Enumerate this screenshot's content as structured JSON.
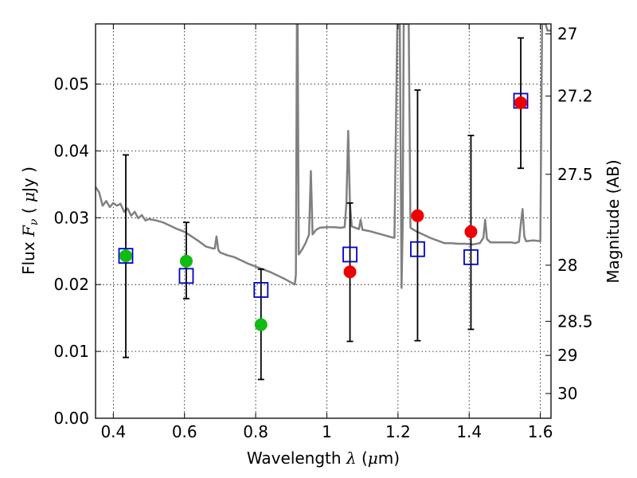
{
  "chart_data": {
    "type": "scatter",
    "title": "",
    "xlabel_prefix": "Wavelength  ",
    "xlabel_symbol": "λ",
    "xlabel_unit_open": " (",
    "xlabel_unit_mu": "μ",
    "xlabel_unit_rest": "m)",
    "ylabel_prefix": "Flux  ",
    "ylabel_symbol_main": "F",
    "ylabel_symbol_sub": "ν",
    "ylabel_unit_open": "  ( ",
    "ylabel_unit_mu": "μ",
    "ylabel_unit_rest": "Jy )",
    "y2label": "Magnitude (AB)",
    "xlim": [
      0.35,
      1.63
    ],
    "ylim": [
      0.0,
      0.059
    ],
    "grid": true,
    "x_ticks": [
      0.4,
      0.6,
      0.8,
      1.0,
      1.2,
      1.4,
      1.6
    ],
    "x_tick_labels": [
      "0.4",
      "0.6",
      "0.8",
      "1",
      "1.2",
      "1.4",
      "1.6"
    ],
    "y_ticks": [
      0.0,
      0.01,
      0.02,
      0.03,
      0.04,
      0.05
    ],
    "y_tick_labels": [
      "0.00",
      "0.01",
      "0.02",
      "0.03",
      "0.04",
      "0.05"
    ],
    "mag_ticks": [
      {
        "label": "27",
        "flux": 0.0575
      },
      {
        "label": "27.2",
        "flux": 0.0482
      },
      {
        "label": "27.5",
        "flux": 0.0365
      },
      {
        "label": "28",
        "flux": 0.0229
      },
      {
        "label": "28.5",
        "flux": 0.0145
      },
      {
        "label": "29",
        "flux": 0.0094
      },
      {
        "label": "30",
        "flux": 0.0037
      }
    ],
    "series": [
      {
        "marker": "square-open",
        "color": "#0000cc",
        "points": [
          {
            "x": 0.435,
            "y": 0.0243,
            "ylo": 0.0091,
            "yhi": 0.0394
          },
          {
            "x": 0.605,
            "y": 0.0213,
            "ylo": 0.0179,
            "yhi": 0.0293
          },
          {
            "x": 0.815,
            "y": 0.0192,
            "ylo": 0.0058,
            "yhi": 0.0223
          },
          {
            "x": 1.065,
            "y": 0.0245,
            "ylo": 0.0115,
            "yhi": 0.0322
          },
          {
            "x": 1.255,
            "y": 0.0253,
            "ylo": 0.0116,
            "yhi": 0.0491
          },
          {
            "x": 1.405,
            "y": 0.0241,
            "ylo": 0.0133,
            "yhi": 0.0423
          },
          {
            "x": 1.545,
            "y": 0.0475,
            "ylo": 0.0374,
            "yhi": 0.0569
          }
        ]
      },
      {
        "marker": "circle",
        "color": "#11bb11",
        "points": [
          {
            "x": 0.435,
            "y": 0.0243
          },
          {
            "x": 0.605,
            "y": 0.0235
          },
          {
            "x": 0.815,
            "y": 0.014
          }
        ]
      },
      {
        "marker": "circle",
        "color": "#ee0000",
        "points": [
          {
            "x": 1.065,
            "y": 0.0219
          },
          {
            "x": 1.255,
            "y": 0.0303
          },
          {
            "x": 1.405,
            "y": 0.0279
          },
          {
            "x": 1.545,
            "y": 0.0472
          }
        ]
      },
      {
        "marker": "line",
        "color": "#808080",
        "points": [
          {
            "x": 0.35,
            "y": 0.0346
          },
          {
            "x": 0.36,
            "y": 0.0338
          },
          {
            "x": 0.37,
            "y": 0.0318
          },
          {
            "x": 0.38,
            "y": 0.0325
          },
          {
            "x": 0.39,
            "y": 0.0316
          },
          {
            "x": 0.4,
            "y": 0.0322
          },
          {
            "x": 0.41,
            "y": 0.0318
          },
          {
            "x": 0.42,
            "y": 0.0321
          },
          {
            "x": 0.43,
            "y": 0.0309
          },
          {
            "x": 0.44,
            "y": 0.0314
          },
          {
            "x": 0.45,
            "y": 0.0303
          },
          {
            "x": 0.46,
            "y": 0.0309
          },
          {
            "x": 0.47,
            "y": 0.0299
          },
          {
            "x": 0.48,
            "y": 0.0304
          },
          {
            "x": 0.49,
            "y": 0.0296
          },
          {
            "x": 0.5,
            "y": 0.0298
          },
          {
            "x": 0.52,
            "y": 0.0296
          },
          {
            "x": 0.54,
            "y": 0.0293
          },
          {
            "x": 0.56,
            "y": 0.0288
          },
          {
            "x": 0.58,
            "y": 0.0283
          },
          {
            "x": 0.6,
            "y": 0.0279
          },
          {
            "x": 0.62,
            "y": 0.0272
          },
          {
            "x": 0.64,
            "y": 0.0265
          },
          {
            "x": 0.66,
            "y": 0.0257
          },
          {
            "x": 0.68,
            "y": 0.0254
          },
          {
            "x": 0.685,
            "y": 0.0254
          },
          {
            "x": 0.69,
            "y": 0.0272
          },
          {
            "x": 0.695,
            "y": 0.0252
          },
          {
            "x": 0.7,
            "y": 0.0248
          },
          {
            "x": 0.72,
            "y": 0.0244
          },
          {
            "x": 0.74,
            "y": 0.0241
          },
          {
            "x": 0.76,
            "y": 0.0236
          },
          {
            "x": 0.78,
            "y": 0.0231
          },
          {
            "x": 0.8,
            "y": 0.0227
          },
          {
            "x": 0.82,
            "y": 0.0223
          },
          {
            "x": 0.84,
            "y": 0.0219
          },
          {
            "x": 0.86,
            "y": 0.0214
          },
          {
            "x": 0.88,
            "y": 0.0209
          },
          {
            "x": 0.9,
            "y": 0.0203
          },
          {
            "x": 0.91,
            "y": 0.02
          },
          {
            "x": 0.913,
            "y": 0.0215
          },
          {
            "x": 0.916,
            "y": 0.059
          },
          {
            "x": 0.918,
            "y": 0.059
          },
          {
            "x": 0.921,
            "y": 0.0245
          },
          {
            "x": 0.93,
            "y": 0.0252
          },
          {
            "x": 0.94,
            "y": 0.0262
          },
          {
            "x": 0.95,
            "y": 0.0275
          },
          {
            "x": 0.955,
            "y": 0.037
          },
          {
            "x": 0.96,
            "y": 0.0275
          },
          {
            "x": 0.97,
            "y": 0.0282
          },
          {
            "x": 0.98,
            "y": 0.0285
          },
          {
            "x": 1.0,
            "y": 0.0286
          },
          {
            "x": 1.02,
            "y": 0.0286
          },
          {
            "x": 1.04,
            "y": 0.0285
          },
          {
            "x": 1.05,
            "y": 0.0286
          },
          {
            "x": 1.055,
            "y": 0.032
          },
          {
            "x": 1.06,
            "y": 0.043
          },
          {
            "x": 1.065,
            "y": 0.032
          },
          {
            "x": 1.07,
            "y": 0.0287
          },
          {
            "x": 1.08,
            "y": 0.0285
          },
          {
            "x": 1.09,
            "y": 0.0283
          },
          {
            "x": 1.095,
            "y": 0.0297
          },
          {
            "x": 1.1,
            "y": 0.0282
          },
          {
            "x": 1.12,
            "y": 0.028
          },
          {
            "x": 1.14,
            "y": 0.0277
          },
          {
            "x": 1.16,
            "y": 0.0274
          },
          {
            "x": 1.18,
            "y": 0.0271
          },
          {
            "x": 1.19,
            "y": 0.027
          },
          {
            "x": 1.198,
            "y": 0.059
          },
          {
            "x": 1.205,
            "y": 0.059
          },
          {
            "x": 1.21,
            "y": 0.0195
          },
          {
            "x": 1.213,
            "y": 0.0285
          },
          {
            "x": 1.216,
            "y": 0.059
          },
          {
            "x": 1.23,
            "y": 0.059
          },
          {
            "x": 1.235,
            "y": 0.0285
          },
          {
            "x": 1.25,
            "y": 0.028
          },
          {
            "x": 1.27,
            "y": 0.0275
          },
          {
            "x": 1.29,
            "y": 0.027
          },
          {
            "x": 1.31,
            "y": 0.0266
          },
          {
            "x": 1.33,
            "y": 0.0262
          },
          {
            "x": 1.35,
            "y": 0.0262
          },
          {
            "x": 1.37,
            "y": 0.0261
          },
          {
            "x": 1.39,
            "y": 0.0261
          },
          {
            "x": 1.41,
            "y": 0.026
          },
          {
            "x": 1.43,
            "y": 0.0262
          },
          {
            "x": 1.44,
            "y": 0.027
          },
          {
            "x": 1.445,
            "y": 0.0297
          },
          {
            "x": 1.45,
            "y": 0.0268
          },
          {
            "x": 1.46,
            "y": 0.0263
          },
          {
            "x": 1.48,
            "y": 0.0263
          },
          {
            "x": 1.5,
            "y": 0.0263
          },
          {
            "x": 1.52,
            "y": 0.0263
          },
          {
            "x": 1.53,
            "y": 0.0262
          },
          {
            "x": 1.54,
            "y": 0.0264
          },
          {
            "x": 1.545,
            "y": 0.029
          },
          {
            "x": 1.55,
            "y": 0.0313
          },
          {
            "x": 1.555,
            "y": 0.0272
          },
          {
            "x": 1.56,
            "y": 0.0265
          },
          {
            "x": 1.58,
            "y": 0.0266
          },
          {
            "x": 1.6,
            "y": 0.0265
          },
          {
            "x": 1.605,
            "y": 0.059
          },
          {
            "x": 1.615,
            "y": 0.059
          },
          {
            "x": 1.62,
            "y": 0.058
          },
          {
            "x": 1.63,
            "y": 0.058
          }
        ]
      }
    ]
  }
}
